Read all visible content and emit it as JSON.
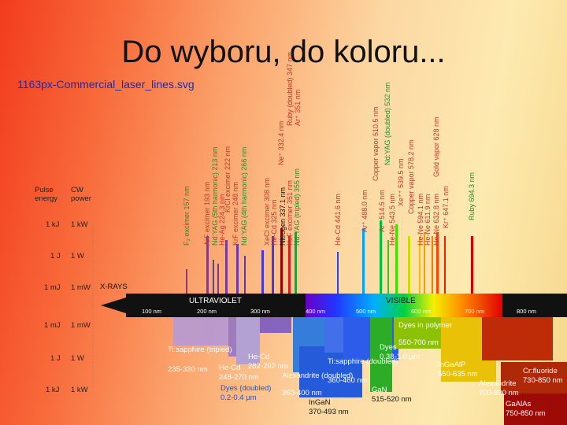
{
  "slide": {
    "title": "Do wyboru, do koloru...",
    "caption": "1163px-Commercial_laser_lines.svg"
  },
  "axis": {
    "pulse_header": "Pulse energy",
    "cw_header": "CW power",
    "rows": [
      {
        "pulse": "1 kJ",
        "cw": "1 kW"
      },
      {
        "pulse": "1 J",
        "cw": "1 W"
      },
      {
        "pulse": "1 mJ",
        "cw": "1 mW"
      },
      {
        "pulse": "1 mJ",
        "cw": "1 mW"
      },
      {
        "pulse": "1 J",
        "cw": "1 W"
      },
      {
        "pulse": "1 kJ",
        "cw": "1 kW"
      }
    ]
  },
  "spectrum": {
    "xrays": "X-RAYS",
    "uv": "ULTRAVIOLET",
    "visible": "VISIBLE",
    "ticks": [
      "100 nm",
      "200 nm",
      "300 nm",
      "400 nm",
      "500 nm",
      "600 nm",
      "700 nm",
      "800 nm"
    ]
  },
  "lines": [
    {
      "label": "F₂ excimer 157 nm",
      "color": "#2a8a2a"
    },
    {
      "label": "ArF excimer 193 nm",
      "color": "#c0392b"
    },
    {
      "label": "Nd:YAG (5th harmonic) 213 nm",
      "color": "#2a8a2a"
    },
    {
      "label": "He-Ag 224.3 nm",
      "color": "#c0392b"
    },
    {
      "label": "KrCl excimer 222 nm",
      "color": "#c0392b"
    },
    {
      "label": "KrF excimer 248 nm",
      "color": "#c0392b"
    },
    {
      "label": "Nd:YAG (4th harmonic) 266 nm",
      "color": "#2a8a2a"
    },
    {
      "label": "XeCl excimer 308 nm",
      "color": "#c0392b"
    },
    {
      "label": "He-Cd 325 nm",
      "color": "#c0392b"
    },
    {
      "label": "Nitrogen 337.1 nm",
      "color": "#111111"
    },
    {
      "label": "XeF excimer 351 nm",
      "color": "#c0392b"
    },
    {
      "label": "Nd:YAG (tripled) 355 nm",
      "color": "#2a8a2a"
    },
    {
      "label": "Ne⁺ 332.4 nm",
      "color": "#c0392b"
    },
    {
      "label": "Ruby (doubled) 347 nm",
      "color": "#c0392b"
    },
    {
      "label": "Ar⁺ 351 nm",
      "color": "#c0392b"
    },
    {
      "label": "He-Cd 441.6 nm",
      "color": "#c0392b"
    },
    {
      "label": "Ar⁺ 488.0 nm",
      "color": "#c0392b"
    },
    {
      "label": "Ar⁺ 514.5 nm",
      "color": "#c0392b"
    },
    {
      "label": "Copper vapor 510.5 nm",
      "color": "#c0392b"
    },
    {
      "label": "Nd:YAG (doubled) 532 nm",
      "color": "#2a8a2a"
    },
    {
      "label": "He-Ne 543.5 nm",
      "color": "#c0392b"
    },
    {
      "label": "Xe⁺⁺ 539.5 nm",
      "color": "#c0392b"
    },
    {
      "label": "Copper vapor 578.2 nm",
      "color": "#c0392b"
    },
    {
      "label": "He-Ne 594.1 nm",
      "color": "#c0392b"
    },
    {
      "label": "He-Ne 611.9 nm",
      "color": "#c0392b"
    },
    {
      "label": "Gold vapor 628 nm",
      "color": "#c0392b"
    },
    {
      "label": "He-Ne 632.8 nm",
      "color": "#c0392b"
    },
    {
      "label": "Kr⁺ 647.1 nm",
      "color": "#c0392b"
    },
    {
      "label": "Ruby 694.3 nm",
      "color": "#2a8a2a"
    }
  ],
  "bands": [
    {
      "name": "Ti:sapphire (tripled)",
      "range": "235-330 nm"
    },
    {
      "name": "He-Cd",
      "range": "282-292 nm"
    },
    {
      "name": "He-Cd",
      "range": "248-270 nm"
    },
    {
      "name": "Dyes (doubled)",
      "range": "0.2-0.4 µm"
    },
    {
      "name": "Alexandrite (doubled)",
      "range": "360-400 nm"
    },
    {
      "name": "Ti:sapphire (doubled)",
      "range": "360-460 nm"
    },
    {
      "name": "InGaN",
      "range": "370-493 nm"
    },
    {
      "name": "GaN",
      "range": "515-520 nm"
    },
    {
      "name": "Dyes",
      "range": "0.38-1.0 µm"
    },
    {
      "name": "Dyes in polymer",
      "range": "550-700 nm"
    },
    {
      "name": "InGaAlP",
      "range": "550-635 nm"
    },
    {
      "name": "Cr:fluoride",
      "range": "730-850 nm"
    },
    {
      "name": "Alexandrite",
      "range": "700-800 nm"
    },
    {
      "name": "GaAlAs",
      "range": "750-850 nm"
    }
  ]
}
